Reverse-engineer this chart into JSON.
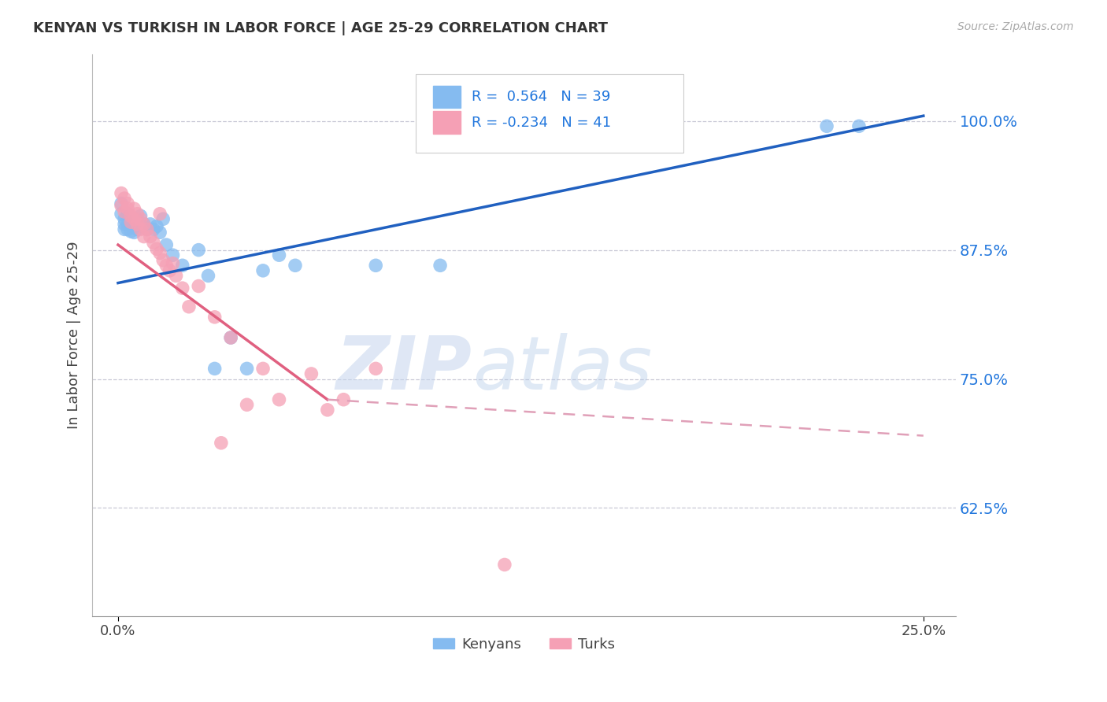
{
  "title": "KENYAN VS TURKISH IN LABOR FORCE | AGE 25-29 CORRELATION CHART",
  "source": "Source: ZipAtlas.com",
  "ylabel": "In Labor Force | Age 25-29",
  "y_ticks": [
    0.625,
    0.75,
    0.875,
    1.0
  ],
  "y_tick_labels": [
    "62.5%",
    "75.0%",
    "87.5%",
    "100.0%"
  ],
  "watermark_zip": "ZIP",
  "watermark_atlas": "atlas",
  "legend_kenyan_R": "R =  0.564",
  "legend_kenyan_N": "N = 39",
  "legend_turk_R": "R = -0.234",
  "legend_turk_N": "N = 41",
  "kenyan_color": "#85BBF0",
  "turk_color": "#F5A0B5",
  "kenyan_line_color": "#2060C0",
  "turk_line_color": "#E06080",
  "turk_line_dashed_color": "#E0A0B8",
  "background_color": "#FFFFFF",
  "kenyan_points": [
    [
      0.001,
      0.92
    ],
    [
      0.001,
      0.91
    ],
    [
      0.002,
      0.905
    ],
    [
      0.002,
      0.9
    ],
    [
      0.002,
      0.895
    ],
    [
      0.003,
      0.91
    ],
    [
      0.003,
      0.9
    ],
    [
      0.003,
      0.895
    ],
    [
      0.004,
      0.905
    ],
    [
      0.004,
      0.9
    ],
    [
      0.004,
      0.893
    ],
    [
      0.005,
      0.898
    ],
    [
      0.005,
      0.892
    ],
    [
      0.006,
      0.905
    ],
    [
      0.006,
      0.895
    ],
    [
      0.007,
      0.908
    ],
    [
      0.007,
      0.9
    ],
    [
      0.008,
      0.9
    ],
    [
      0.009,
      0.895
    ],
    [
      0.01,
      0.9
    ],
    [
      0.011,
      0.895
    ],
    [
      0.012,
      0.898
    ],
    [
      0.013,
      0.892
    ],
    [
      0.014,
      0.905
    ],
    [
      0.015,
      0.88
    ],
    [
      0.017,
      0.87
    ],
    [
      0.02,
      0.86
    ],
    [
      0.025,
      0.875
    ],
    [
      0.028,
      0.85
    ],
    [
      0.03,
      0.76
    ],
    [
      0.035,
      0.79
    ],
    [
      0.04,
      0.76
    ],
    [
      0.045,
      0.855
    ],
    [
      0.05,
      0.87
    ],
    [
      0.055,
      0.86
    ],
    [
      0.08,
      0.86
    ],
    [
      0.1,
      0.86
    ],
    [
      0.22,
      0.995
    ],
    [
      0.23,
      0.995
    ]
  ],
  "turk_points": [
    [
      0.001,
      0.93
    ],
    [
      0.001,
      0.918
    ],
    [
      0.002,
      0.925
    ],
    [
      0.002,
      0.912
    ],
    [
      0.003,
      0.92
    ],
    [
      0.003,
      0.915
    ],
    [
      0.004,
      0.908
    ],
    [
      0.004,
      0.902
    ],
    [
      0.005,
      0.915
    ],
    [
      0.005,
      0.905
    ],
    [
      0.006,
      0.91
    ],
    [
      0.006,
      0.9
    ],
    [
      0.007,
      0.905
    ],
    [
      0.007,
      0.895
    ],
    [
      0.008,
      0.9
    ],
    [
      0.008,
      0.888
    ],
    [
      0.009,
      0.895
    ],
    [
      0.01,
      0.888
    ],
    [
      0.011,
      0.882
    ],
    [
      0.012,
      0.876
    ],
    [
      0.013,
      0.872
    ],
    [
      0.013,
      0.91
    ],
    [
      0.014,
      0.865
    ],
    [
      0.015,
      0.86
    ],
    [
      0.016,
      0.855
    ],
    [
      0.017,
      0.862
    ],
    [
      0.018,
      0.85
    ],
    [
      0.02,
      0.838
    ],
    [
      0.022,
      0.82
    ],
    [
      0.025,
      0.84
    ],
    [
      0.03,
      0.81
    ],
    [
      0.032,
      0.688
    ],
    [
      0.035,
      0.79
    ],
    [
      0.04,
      0.725
    ],
    [
      0.045,
      0.76
    ],
    [
      0.05,
      0.73
    ],
    [
      0.06,
      0.755
    ],
    [
      0.065,
      0.72
    ],
    [
      0.07,
      0.73
    ],
    [
      0.08,
      0.76
    ],
    [
      0.12,
      0.57
    ]
  ],
  "xlim": [
    -0.008,
    0.26
  ],
  "ylim": [
    0.52,
    1.065
  ],
  "kenyan_line": [
    0.0,
    0.843,
    0.25,
    1.005
  ],
  "turk_line_solid": [
    0.0,
    0.88,
    0.065,
    0.73
  ],
  "turk_line_dashed": [
    0.065,
    0.73,
    0.25,
    0.695
  ]
}
